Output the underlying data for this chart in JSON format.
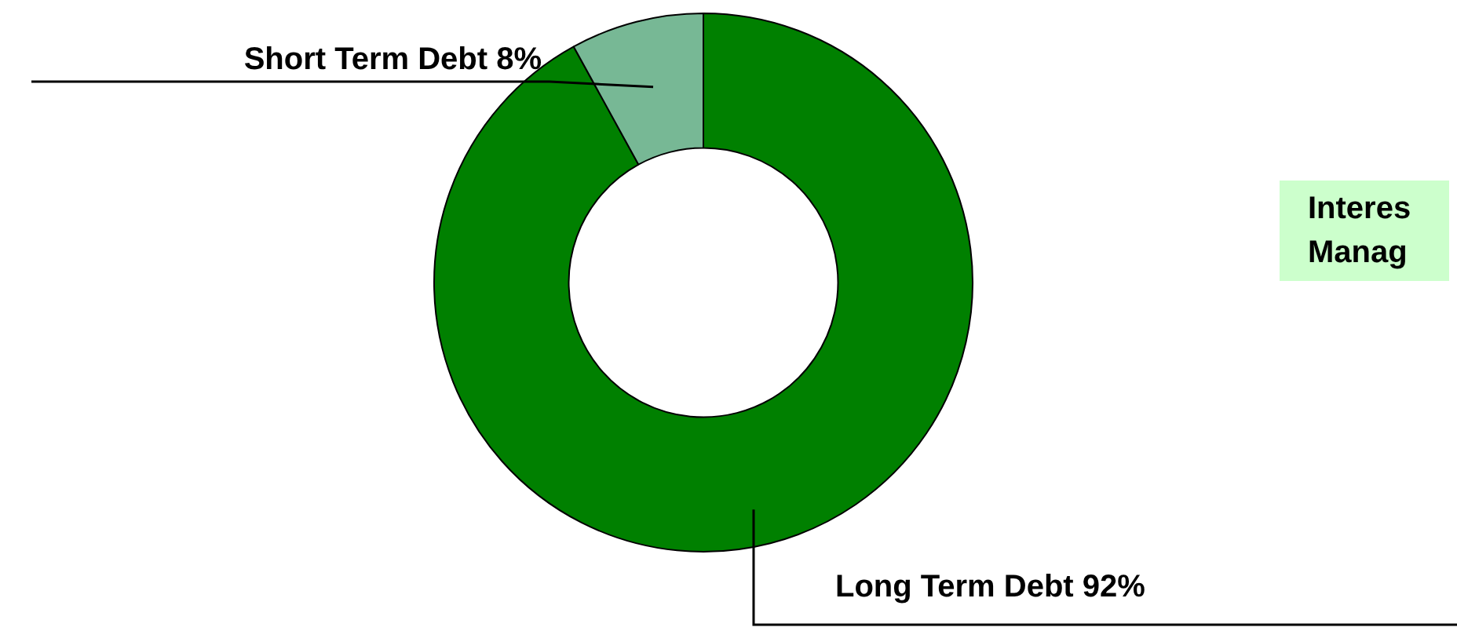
{
  "chart_data": {
    "type": "donut",
    "categories": [
      "Long Term Debt",
      "Short Term Debt"
    ],
    "values": [
      92,
      8
    ],
    "colors": [
      "#008000",
      "#77b895"
    ],
    "value_labels": [
      "92%",
      "8%"
    ],
    "legend": false,
    "annotations": [
      "Interes\nManag"
    ]
  }
}
